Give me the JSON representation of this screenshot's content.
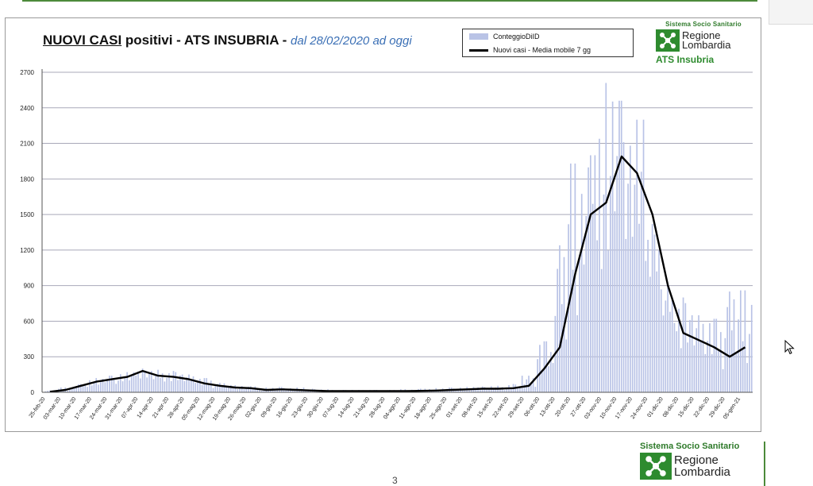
{
  "chart_data": {
    "type": "bar",
    "title": "NUOVI CASI",
    "title_rest": " positivi - ATS INSUBRIA - ",
    "subtitle": "dal 28/02/2020 ad oggi",
    "ylim": [
      0,
      2700
    ],
    "y_ticks": [
      0,
      300,
      600,
      900,
      1200,
      1500,
      1800,
      2100,
      2400,
      2700
    ],
    "grid": true,
    "legend_position": "top-right",
    "series": [
      {
        "name": "ConteggioDiID",
        "kind": "bar",
        "color": "#b9c3e6"
      },
      {
        "name": "Nuovi casi - Media mobile 7 gg",
        "kind": "line",
        "color": "#000000"
      }
    ],
    "x_tick_labels": [
      "25-feb-20",
      "03-mar-20",
      "10-mar-20",
      "17-mar-20",
      "24-mar-20",
      "31-mar-20",
      "07-apr-20",
      "14-apr-20",
      "21-apr-20",
      "28-apr-20",
      "05-mag-20",
      "12-mag-20",
      "19-mag-20",
      "26-mag-20",
      "02-giu-20",
      "09-giu-20",
      "16-giu-20",
      "23-giu-20",
      "30-giu-20",
      "07-lug-20",
      "14-lug-20",
      "21-lug-20",
      "28-lug-20",
      "04-ago-20",
      "11-ago-20",
      "18-ago-20",
      "25-ago-20",
      "01-set-20",
      "08-set-20",
      "15-set-20",
      "22-set-20",
      "29-set-20",
      "06-ott-20",
      "13-ott-20",
      "20-ott-20",
      "27-ott-20",
      "03-nov-20",
      "10-nov-20",
      "17-nov-20",
      "24-nov-20",
      "01-dic-20",
      "08-dic-20",
      "15-dic-20",
      "22-dic-20",
      "29-dic-20",
      "05-gen-21"
    ],
    "weekly_moving_average": [
      5,
      20,
      55,
      90,
      110,
      130,
      180,
      140,
      130,
      110,
      75,
      55,
      40,
      35,
      20,
      25,
      20,
      15,
      10,
      10,
      10,
      10,
      10,
      10,
      12,
      15,
      20,
      25,
      30,
      30,
      35,
      55,
      200,
      380,
      1000,
      1500,
      1600,
      1990,
      1850,
      1500,
      900,
      500,
      440,
      380,
      300,
      380
    ],
    "daily_peaks": [
      15,
      40,
      70,
      120,
      140,
      170,
      200,
      190,
      180,
      150,
      120,
      80,
      60,
      50,
      40,
      45,
      40,
      30,
      25,
      20,
      20,
      20,
      20,
      25,
      30,
      35,
      40,
      45,
      50,
      55,
      70,
      140,
      430,
      1240,
      1930,
      2000,
      2610,
      2460,
      2300,
      1420,
      900,
      800,
      650,
      620,
      850,
      860
    ]
  },
  "logos": {
    "top_system": "Sistema Socio Sanitario",
    "top_region_line1": "Regione",
    "top_region_line2": "Lombardia",
    "top_ats": "ATS Insubria",
    "bottom_system": "Sistema Socio Sanitario",
    "bottom_region_line1": "Regione",
    "bottom_region_line2": "Lombardia",
    "colors": {
      "green": "#2e8b2f"
    }
  },
  "page_number": "3"
}
